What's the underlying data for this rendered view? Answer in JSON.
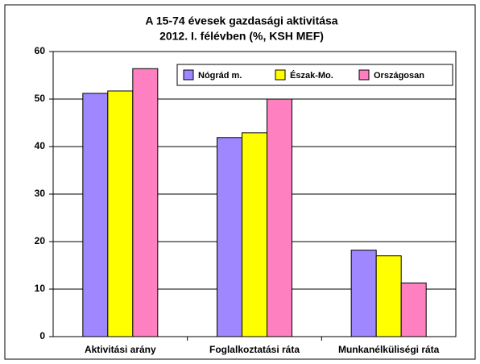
{
  "chart_data": {
    "type": "bar",
    "title": "A 15-74 évesek gazdasági aktivitása",
    "subtitle": "2012. I. félévben (%, KSH MEF)",
    "categories": [
      "Aktivitási arány",
      "Foglalkoztatási ráta",
      "Munkanélküliségi ráta"
    ],
    "series": [
      {
        "name": "Nógrád m.",
        "color": "#9f88ff",
        "values": [
          51.2,
          41.9,
          18.2
        ]
      },
      {
        "name": "Észak-Mo.",
        "color": "#ffff00",
        "values": [
          51.7,
          42.9,
          17.0
        ]
      },
      {
        "name": "Országosan",
        "color": "#ff80c0",
        "values": [
          56.4,
          50.0,
          11.3
        ]
      }
    ],
    "ylim": [
      0,
      60
    ],
    "yticks": [
      0,
      10,
      20,
      30,
      40,
      50,
      60
    ],
    "grid": true,
    "legend": "top-right"
  }
}
